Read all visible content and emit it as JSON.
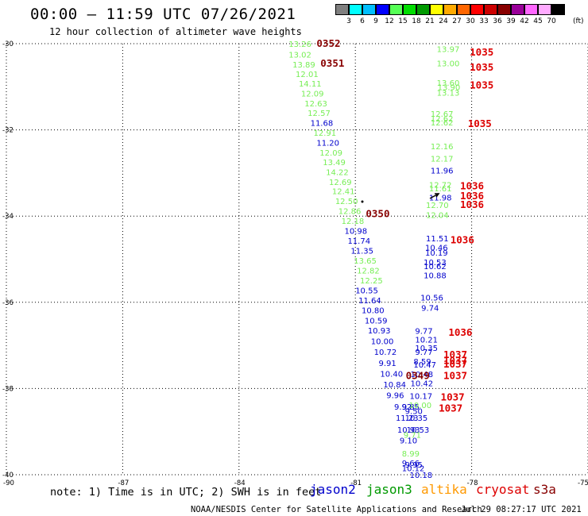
{
  "header": {
    "title": "00:00 – 11:59 UTC 07/26/2021",
    "subtitle": "12 hour collection of altimeter wave heights"
  },
  "colorbar": {
    "unit": "(ft)",
    "labels": [
      "3",
      "6",
      "9",
      "12",
      "15",
      "18",
      "21",
      "24",
      "27",
      "30",
      "33",
      "36",
      "39",
      "42",
      "45",
      "70"
    ],
    "colors": [
      "#7f7f7f",
      "#00ffff",
      "#00bfff",
      "#0000ff",
      "#55ff55",
      "#00dd00",
      "#009900",
      "#ffff00",
      "#ffaa00",
      "#ff6600",
      "#ff0000",
      "#cc0000",
      "#880000",
      "#990099",
      "#ff66ff",
      "#ffaaff",
      "#000000"
    ]
  },
  "footer": {
    "note": "note: 1) Time is in UTC; 2) SWH is in feet",
    "credit": "NOAA/NESDIS Center for Satellite Applications and Research",
    "timestamp": "Jul 29 08:27:17 UTC 2021",
    "satellites": [
      {
        "name": "jason2",
        "color": "#0000cc"
      },
      {
        "name": "jason3",
        "color": "#009900"
      },
      {
        "name": "altika",
        "color": "#ff9900"
      },
      {
        "name": "cryosat",
        "color": "#dd0000"
      },
      {
        "name": "s3a",
        "color": "#880000"
      }
    ]
  },
  "chart_data": {
    "type": "scatter",
    "xlim": [
      -90,
      -75
    ],
    "ylim": [
      -40,
      -30
    ],
    "x_ticks": [
      "-90",
      "-87",
      "-84",
      "-81",
      "-78",
      "-75"
    ],
    "y_ticks": [
      "-30",
      "-32",
      "-34",
      "-36",
      "-38",
      "-40"
    ],
    "grid": true,
    "annotations": [
      {
        "x": -82.72,
        "y": -30.0,
        "text": "13.26",
        "color": "#77ee55"
      },
      {
        "x": -82.72,
        "y": -30.25,
        "text": "13.02",
        "color": "#77ee55"
      },
      {
        "x": -82.62,
        "y": -30.48,
        "text": "13.89",
        "color": "#77ee55"
      },
      {
        "x": -82.54,
        "y": -30.7,
        "text": "12.01",
        "color": "#77ee55"
      },
      {
        "x": -82.46,
        "y": -30.92,
        "text": "14.11",
        "color": "#77ee55"
      },
      {
        "x": -82.4,
        "y": -31.15,
        "text": "12.09",
        "color": "#77ee55"
      },
      {
        "x": -82.31,
        "y": -31.38,
        "text": "12.63",
        "color": "#77ee55"
      },
      {
        "x": -82.23,
        "y": -31.6,
        "text": "12.57",
        "color": "#77ee55"
      },
      {
        "x": -82.16,
        "y": -31.83,
        "text": "11.68",
        "color": "#0000cc"
      },
      {
        "x": -82.08,
        "y": -32.06,
        "text": "12.91",
        "color": "#77ee55"
      },
      {
        "x": -82.0,
        "y": -32.29,
        "text": "11.20",
        "color": "#0000cc"
      },
      {
        "x": -81.92,
        "y": -32.52,
        "text": "12.09",
        "color": "#77ee55"
      },
      {
        "x": -81.84,
        "y": -32.74,
        "text": "13.49",
        "color": "#77ee55"
      },
      {
        "x": -81.76,
        "y": -32.97,
        "text": "14.22",
        "color": "#77ee55"
      },
      {
        "x": -81.68,
        "y": -33.2,
        "text": "12.69",
        "color": "#77ee55"
      },
      {
        "x": -81.6,
        "y": -33.42,
        "text": "12.41",
        "color": "#77ee55"
      },
      {
        "x": -81.52,
        "y": -33.65,
        "text": "12.50",
        "color": "#77ee55"
      },
      {
        "x": -81.44,
        "y": -33.88,
        "text": "12.86",
        "color": "#77ee55"
      },
      {
        "x": -81.36,
        "y": -34.11,
        "text": "12.18",
        "color": "#77ee55"
      },
      {
        "x": -81.28,
        "y": -34.34,
        "text": "10.98",
        "color": "#0000cc"
      },
      {
        "x": -81.2,
        "y": -34.57,
        "text": "11.74",
        "color": "#0000cc"
      },
      {
        "x": -81.12,
        "y": -34.8,
        "text": "11.35",
        "color": "#0000cc"
      },
      {
        "x": -81.04,
        "y": -35.03,
        "text": "13.65",
        "color": "#77ee55"
      },
      {
        "x": -80.96,
        "y": -35.26,
        "text": "12.82",
        "color": "#77ee55"
      },
      {
        "x": -80.88,
        "y": -35.49,
        "text": "12.25",
        "color": "#77ee55"
      },
      {
        "x": -81.0,
        "y": -35.72,
        "text": "10.55",
        "color": "#0000cc"
      },
      {
        "x": -80.92,
        "y": -35.95,
        "text": "11.64",
        "color": "#0000cc"
      },
      {
        "x": -80.84,
        "y": -36.18,
        "text": "10.80",
        "color": "#0000cc"
      },
      {
        "x": -80.76,
        "y": -36.42,
        "text": "10.59",
        "color": "#0000cc"
      },
      {
        "x": -80.68,
        "y": -36.65,
        "text": "10.93",
        "color": "#0000cc"
      },
      {
        "x": -80.6,
        "y": -36.9,
        "text": "10.00",
        "color": "#0000cc"
      },
      {
        "x": -80.52,
        "y": -37.15,
        "text": "10.72",
        "color": "#0000cc"
      },
      {
        "x": -80.4,
        "y": -37.4,
        "text": "9.91",
        "color": "#0000cc"
      },
      {
        "x": -80.36,
        "y": -37.65,
        "text": "10.40",
        "color": "#0000cc"
      },
      {
        "x": -80.28,
        "y": -37.9,
        "text": "10.84",
        "color": "#0000cc"
      },
      {
        "x": -80.2,
        "y": -38.15,
        "text": "9.96",
        "color": "#0000cc"
      },
      {
        "x": -80.0,
        "y": -38.42,
        "text": "9.92",
        "color": "#0000cc"
      },
      {
        "x": -79.8,
        "y": -38.42,
        "text": "9.85",
        "color": "#0000cc"
      },
      {
        "x": -79.72,
        "y": -38.52,
        "text": "9.50",
        "color": "#0000cc"
      },
      {
        "x": -79.96,
        "y": -38.67,
        "text": "11.23",
        "color": "#0000cc"
      },
      {
        "x": -79.72,
        "y": -38.67,
        "text": "10.35",
        "color": "#0000cc"
      },
      {
        "x": -79.92,
        "y": -38.95,
        "text": "10.93",
        "color": "#0000cc"
      },
      {
        "x": -79.68,
        "y": -38.95,
        "text": "10.53",
        "color": "#0000cc"
      },
      {
        "x": -79.76,
        "y": -39.07,
        "text": "9.71",
        "color": "#77ee55"
      },
      {
        "x": -79.86,
        "y": -39.2,
        "text": "9.10",
        "color": "#0000cc"
      },
      {
        "x": -79.8,
        "y": -39.5,
        "text": "8.99",
        "color": "#77ee55"
      },
      {
        "x": -79.8,
        "y": -39.72,
        "text": "9.66",
        "color": "#0000cc"
      },
      {
        "x": -79.72,
        "y": -39.76,
        "text": "9.95",
        "color": "#0000cc"
      },
      {
        "x": -79.8,
        "y": -39.84,
        "text": "10.12",
        "color": "#0000cc"
      },
      {
        "x": -79.6,
        "y": -40.0,
        "text": "10.18",
        "color": "#0000cc"
      },
      {
        "x": -78.9,
        "y": -30.12,
        "text": "13.97",
        "color": "#77ee55"
      },
      {
        "x": -78.9,
        "y": -30.45,
        "text": "13.00",
        "color": "#77ee55"
      },
      {
        "x": -78.9,
        "y": -30.9,
        "text": "13.60",
        "color": "#77ee55"
      },
      {
        "x": -78.88,
        "y": -31.0,
        "text": "13.90",
        "color": "#77ee55"
      },
      {
        "x": -78.9,
        "y": -31.13,
        "text": "13.13",
        "color": "#77ee55"
      },
      {
        "x": -79.06,
        "y": -31.62,
        "text": "12.67",
        "color": "#77ee55"
      },
      {
        "x": -79.06,
        "y": -31.73,
        "text": "12.62",
        "color": "#77ee55"
      },
      {
        "x": -79.06,
        "y": -31.82,
        "text": "12.62",
        "color": "#77ee55"
      },
      {
        "x": -79.06,
        "y": -32.38,
        "text": "12.16",
        "color": "#77ee55"
      },
      {
        "x": -79.06,
        "y": -32.66,
        "text": "12.17",
        "color": "#77ee55"
      },
      {
        "x": -79.06,
        "y": -32.94,
        "text": "11.96",
        "color": "#0000cc"
      },
      {
        "x": -79.1,
        "y": -33.27,
        "text": "12.72",
        "color": "#77ee55"
      },
      {
        "x": -79.1,
        "y": -33.35,
        "text": "11.61",
        "color": "#77ee55"
      },
      {
        "x": -79.1,
        "y": -33.56,
        "text": "11.98",
        "color": "#0000cc"
      },
      {
        "x": -79.18,
        "y": -33.74,
        "text": "12.70",
        "color": "#77ee55"
      },
      {
        "x": -79.18,
        "y": -33.97,
        "text": "12.04",
        "color": "#77ee55"
      },
      {
        "x": -79.18,
        "y": -34.51,
        "text": "11.51",
        "color": "#0000cc"
      },
      {
        "x": -79.2,
        "y": -34.72,
        "text": "10.46",
        "color": "#0000cc"
      },
      {
        "x": -79.2,
        "y": -34.84,
        "text": "10.19",
        "color": "#0000cc"
      },
      {
        "x": -79.24,
        "y": -35.06,
        "text": "10.53",
        "color": "#0000cc"
      },
      {
        "x": -79.24,
        "y": -35.16,
        "text": "10.62",
        "color": "#0000cc"
      },
      {
        "x": -79.24,
        "y": -35.37,
        "text": "10.88",
        "color": "#0000cc"
      },
      {
        "x": -79.32,
        "y": -35.88,
        "text": "10.56",
        "color": "#0000cc"
      },
      {
        "x": -79.3,
        "y": -36.12,
        "text": "9.74",
        "color": "#0000cc"
      },
      {
        "x": -79.46,
        "y": -36.66,
        "text": "9.77",
        "color": "#0000cc"
      },
      {
        "x": -79.46,
        "y": -36.86,
        "text": "10.21",
        "color": "#0000cc"
      },
      {
        "x": -79.46,
        "y": -37.05,
        "text": "10.35",
        "color": "#0000cc"
      },
      {
        "x": -79.46,
        "y": -37.15,
        "text": "9.77",
        "color": "#0000cc"
      },
      {
        "x": -79.5,
        "y": -37.37,
        "text": "8.59",
        "color": "#0000cc"
      },
      {
        "x": -79.5,
        "y": -37.44,
        "text": "10.47",
        "color": "#0000cc"
      },
      {
        "x": -79.58,
        "y": -37.66,
        "text": "10.48",
        "color": "#0000cc"
      },
      {
        "x": -79.58,
        "y": -37.87,
        "text": "10.42",
        "color": "#0000cc"
      },
      {
        "x": -79.6,
        "y": -38.17,
        "text": "10.17",
        "color": "#0000cc"
      },
      {
        "x": -79.62,
        "y": -38.38,
        "text": "10.00",
        "color": "#77ee55"
      },
      {
        "x": -82.0,
        "y": -30.0,
        "text": "0352",
        "color": "#880000"
      },
      {
        "x": -81.9,
        "y": -30.46,
        "text": "0351",
        "color": "#880000"
      },
      {
        "x": -80.73,
        "y": -33.95,
        "text": "0350",
        "color": "#880000"
      },
      {
        "x": -79.7,
        "y": -37.71,
        "text": "0349",
        "color": "#880000"
      },
      {
        "x": -78.05,
        "y": -30.2,
        "text": "1035",
        "color": "#dd0000"
      },
      {
        "x": -78.05,
        "y": -30.55,
        "text": "1035",
        "color": "#dd0000"
      },
      {
        "x": -78.05,
        "y": -30.97,
        "text": "1035",
        "color": "#dd0000"
      },
      {
        "x": -78.1,
        "y": -31.86,
        "text": "1035",
        "color": "#dd0000"
      },
      {
        "x": -78.3,
        "y": -33.31,
        "text": "1036",
        "color": "#dd0000"
      },
      {
        "x": -78.3,
        "y": -33.54,
        "text": "1036",
        "color": "#dd0000"
      },
      {
        "x": -78.3,
        "y": -33.74,
        "text": "1036",
        "color": "#dd0000"
      },
      {
        "x": -78.55,
        "y": -34.56,
        "text": "1036",
        "color": "#dd0000"
      },
      {
        "x": -78.6,
        "y": -36.7,
        "text": "1036",
        "color": "#dd0000"
      },
      {
        "x": -78.73,
        "y": -37.22,
        "text": "1037",
        "color": "#dd0000"
      },
      {
        "x": -78.73,
        "y": -37.36,
        "text": "1037",
        "color": "#dd0000"
      },
      {
        "x": -78.73,
        "y": -37.44,
        "text": "1037",
        "color": "#dd0000"
      },
      {
        "x": -78.73,
        "y": -37.71,
        "text": "1037",
        "color": "#dd0000"
      },
      {
        "x": -78.8,
        "y": -38.2,
        "text": "1037",
        "color": "#dd0000"
      },
      {
        "x": -78.85,
        "y": -38.46,
        "text": "1037",
        "color": "#dd0000"
      }
    ]
  }
}
